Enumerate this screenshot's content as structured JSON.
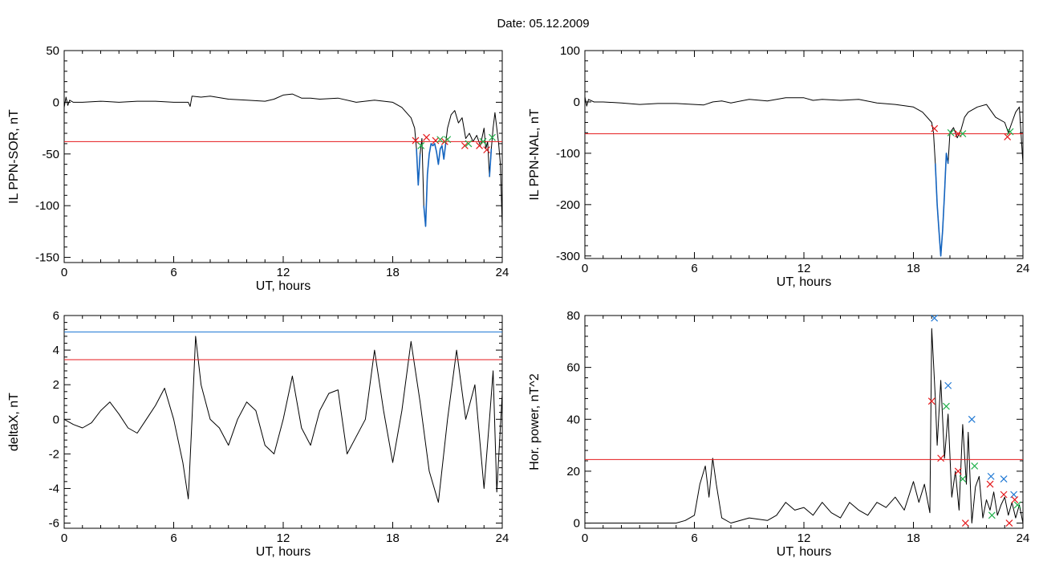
{
  "page_title": "Date:  05.12.2009",
  "colors": {
    "signal": "#000000",
    "threshold": "#e41a1c",
    "upper_threshold": "#1f78d4",
    "highlight": "#1565c0",
    "marker_start": "#e41a1c",
    "marker_end": "#22b14c",
    "marker_peak": "#1f78d4"
  },
  "chart_data": [
    {
      "id": "il-sor",
      "type": "line",
      "title": "",
      "xlabel": "UT, hours",
      "ylabel": "IL PPN-SOR, nT",
      "xlim": [
        0,
        24
      ],
      "ylim": [
        -155,
        50
      ],
      "xticks": [
        0,
        6,
        12,
        18,
        24
      ],
      "yticks": [
        50,
        0,
        -50,
        -100,
        -150
      ],
      "grid": false,
      "threshold": -38,
      "series": [
        {
          "x": [
            0,
            0.1,
            0.2,
            0.3,
            0.5,
            1,
            2,
            3,
            4,
            5,
            6,
            6.8,
            6.9,
            7,
            7.5,
            8,
            9,
            10,
            11,
            11.5,
            12,
            12.5,
            13,
            13.5,
            14,
            15,
            16,
            17,
            18,
            18.5,
            19,
            19.2,
            19.3,
            19.4,
            19.5,
            19.6,
            19.7,
            19.8,
            19.9,
            20,
            20.1,
            20.2,
            20.3,
            20.4,
            20.5,
            20.6,
            20.7,
            20.8,
            20.9,
            21,
            21.2,
            21.4,
            21.6,
            21.8,
            22,
            22.2,
            22.4,
            22.6,
            22.8,
            23,
            23.1,
            23.2,
            23.3,
            23.4,
            23.5,
            23.6,
            23.8,
            23.9,
            24
          ],
          "y": [
            -5,
            5,
            -3,
            2,
            0,
            0,
            1,
            0,
            1,
            1,
            0,
            0,
            -4,
            6,
            5,
            6,
            3,
            2,
            1,
            3,
            7,
            8,
            4,
            4,
            3,
            4,
            0,
            2,
            0,
            -5,
            -15,
            -25,
            -45,
            -80,
            -50,
            -35,
            -100,
            -120,
            -70,
            -50,
            -40,
            -42,
            -40,
            -48,
            -60,
            -45,
            -42,
            -55,
            -40,
            -25,
            -12,
            -8,
            -20,
            -15,
            -35,
            -30,
            -38,
            -32,
            -42,
            -25,
            -45,
            -38,
            -72,
            -45,
            -25,
            -10,
            -40,
            -60,
            -120
          ]
        }
      ],
      "highlight_segments": [
        [
          19.1,
          21.0
        ],
        [
          22.7,
          23.6
        ]
      ],
      "markers": [
        {
          "x": 19.25,
          "y": -37,
          "kind": "start"
        },
        {
          "x": 19.55,
          "y": -42,
          "kind": "end"
        },
        {
          "x": 19.85,
          "y": -34,
          "kind": "start"
        },
        {
          "x": 20.35,
          "y": -37,
          "kind": "start"
        },
        {
          "x": 20.6,
          "y": -36,
          "kind": "end"
        },
        {
          "x": 20.85,
          "y": -38,
          "kind": "start"
        },
        {
          "x": 21.0,
          "y": -36,
          "kind": "end"
        },
        {
          "x": 21.95,
          "y": -42,
          "kind": "start"
        },
        {
          "x": 22.15,
          "y": -40,
          "kind": "end"
        },
        {
          "x": 22.75,
          "y": -42,
          "kind": "start"
        },
        {
          "x": 22.95,
          "y": -38,
          "kind": "end"
        },
        {
          "x": 23.15,
          "y": -46,
          "kind": "start"
        },
        {
          "x": 23.45,
          "y": -34,
          "kind": "end"
        }
      ]
    },
    {
      "id": "il-nal",
      "type": "line",
      "title": "",
      "xlabel": "UT, hours",
      "ylabel": "IL PPN-NAL, nT",
      "xlim": [
        0,
        24
      ],
      "ylim": [
        -305,
        100
      ],
      "xticks": [
        0,
        6,
        12,
        18,
        24
      ],
      "yticks": [
        100,
        0,
        -100,
        -200,
        -300
      ],
      "grid": false,
      "threshold": -62,
      "series": [
        {
          "x": [
            0,
            0.1,
            0.2,
            0.5,
            1,
            2,
            3,
            4,
            5,
            6,
            6.5,
            7,
            7.5,
            8,
            9,
            10,
            11,
            12,
            12.5,
            13,
            14,
            15,
            16,
            17,
            18,
            18.5,
            19,
            19.1,
            19.2,
            19.3,
            19.4,
            19.5,
            19.6,
            19.7,
            19.8,
            19.9,
            20,
            20.2,
            20.4,
            20.6,
            20.8,
            21,
            21.5,
            22,
            22.5,
            23,
            23.2,
            23.4,
            23.6,
            23.8,
            24
          ],
          "y": [
            10,
            -8,
            5,
            0,
            0,
            -2,
            -5,
            -3,
            -3,
            -5,
            -6,
            0,
            2,
            -2,
            5,
            2,
            8,
            8,
            3,
            5,
            3,
            5,
            -2,
            -5,
            -10,
            -20,
            -40,
            -60,
            -120,
            -200,
            -250,
            -300,
            -250,
            -180,
            -100,
            -120,
            -60,
            -50,
            -70,
            -55,
            -30,
            -20,
            -10,
            -5,
            -30,
            -40,
            -60,
            -40,
            -20,
            -10,
            -120
          ]
        }
      ],
      "highlight_segments": [
        [
          19.2,
          20.4
        ]
      ],
      "markers": [
        {
          "x": 19.15,
          "y": -52,
          "kind": "start"
        },
        {
          "x": 20.05,
          "y": -60,
          "kind": "end"
        },
        {
          "x": 20.45,
          "y": -62,
          "kind": "start"
        },
        {
          "x": 20.7,
          "y": -62,
          "kind": "end"
        },
        {
          "x": 23.15,
          "y": -68,
          "kind": "start"
        },
        {
          "x": 23.3,
          "y": -58,
          "kind": "end"
        }
      ]
    },
    {
      "id": "deltax",
      "type": "line",
      "title": "",
      "xlabel": "UT, hours",
      "ylabel": "deltaX, nT",
      "xlim": [
        0,
        24
      ],
      "ylim": [
        -6.3,
        6
      ],
      "xticks": [
        0,
        6,
        12,
        18,
        24
      ],
      "yticks": [
        6,
        4,
        2,
        0,
        -2,
        -4,
        -6
      ],
      "grid": false,
      "thresholds": [
        {
          "y": 5.05,
          "color_key": "upper_threshold"
        },
        {
          "y": 3.45,
          "color_key": "threshold"
        }
      ],
      "series": [
        {
          "x": [
            0,
            0.5,
            1,
            1.5,
            2,
            2.5,
            3,
            3.5,
            4,
            4.5,
            5,
            5.5,
            6,
            6.5,
            6.8,
            7,
            7.2,
            7.5,
            8,
            8.5,
            9,
            9.5,
            10,
            10.5,
            11,
            11.5,
            12,
            12.5,
            13,
            13.5,
            14,
            14.5,
            15,
            15.5,
            16,
            16.5,
            17,
            17.5,
            18,
            18.5,
            19,
            19.5,
            20,
            20.5,
            21,
            21.5,
            22,
            22.5,
            23,
            23.3,
            23.5,
            23.7,
            24
          ],
          "y": [
            0,
            -0.3,
            -0.5,
            -0.2,
            0.5,
            1,
            0.3,
            -0.5,
            -0.8,
            0,
            0.8,
            1.8,
            0,
            -2.5,
            -4.6,
            0,
            4.8,
            2,
            0,
            -0.5,
            -1.5,
            0,
            1,
            0.5,
            -1.5,
            -2,
            0,
            2.5,
            -0.5,
            -1.5,
            0.5,
            1.5,
            1.7,
            -2,
            -1,
            0,
            4,
            0.5,
            -2.5,
            0.5,
            4.5,
            1,
            -3,
            -4.8,
            0,
            4,
            0,
            2,
            -4,
            0,
            2.8,
            -4.2,
            1.5
          ]
        }
      ]
    },
    {
      "id": "hor-power",
      "type": "line",
      "title": "",
      "xlabel": "UT, hours",
      "ylabel": "Hor. power, nT^2",
      "xlim": [
        0,
        24
      ],
      "ylim": [
        -2,
        80
      ],
      "xticks": [
        0,
        6,
        12,
        18,
        24
      ],
      "yticks": [
        80,
        60,
        40,
        20,
        0
      ],
      "grid": false,
      "threshold": 24.5,
      "series": [
        {
          "x": [
            0,
            1,
            2,
            3,
            4,
            5,
            5.5,
            6,
            6.3,
            6.6,
            6.8,
            7,
            7.2,
            7.5,
            8,
            9,
            10,
            10.5,
            11,
            11.5,
            12,
            12.5,
            13,
            13.5,
            14,
            14.5,
            15,
            15.5,
            16,
            16.5,
            17,
            17.5,
            18,
            18.3,
            18.6,
            18.9,
            19,
            19.1,
            19.2,
            19.3,
            19.5,
            19.7,
            19.9,
            20.1,
            20.3,
            20.5,
            20.7,
            20.9,
            21,
            21.2,
            21.4,
            21.6,
            21.8,
            22,
            22.2,
            22.4,
            22.6,
            22.8,
            23,
            23.2,
            23.4,
            23.6,
            23.8,
            24
          ],
          "y": [
            0,
            0,
            0,
            0,
            0,
            0,
            1,
            3,
            15,
            22,
            10,
            25,
            15,
            2,
            0,
            2,
            1,
            3,
            8,
            5,
            6,
            3,
            8,
            4,
            2,
            8,
            5,
            3,
            8,
            6,
            10,
            5,
            16,
            8,
            15,
            4,
            75,
            62,
            48,
            30,
            55,
            25,
            42,
            10,
            20,
            5,
            38,
            15,
            35,
            0,
            14,
            18,
            2,
            9,
            5,
            12,
            3,
            7,
            10,
            3,
            8,
            2,
            7,
            0
          ]
        }
      ],
      "markers": [
        {
          "x": 19.15,
          "y": 79,
          "kind": "peak"
        },
        {
          "x": 19.9,
          "y": 53,
          "kind": "peak"
        },
        {
          "x": 21.2,
          "y": 40,
          "kind": "peak"
        },
        {
          "x": 22.25,
          "y": 18,
          "kind": "peak"
        },
        {
          "x": 22.95,
          "y": 17,
          "kind": "peak"
        },
        {
          "x": 23.5,
          "y": 11,
          "kind": "peak"
        },
        {
          "x": 19.0,
          "y": 47,
          "kind": "start"
        },
        {
          "x": 19.5,
          "y": 25,
          "kind": "start"
        },
        {
          "x": 20.45,
          "y": 20,
          "kind": "start"
        },
        {
          "x": 20.85,
          "y": 0,
          "kind": "start"
        },
        {
          "x": 22.2,
          "y": 15,
          "kind": "start"
        },
        {
          "x": 22.95,
          "y": 11,
          "kind": "start"
        },
        {
          "x": 23.25,
          "y": 0,
          "kind": "start"
        },
        {
          "x": 23.55,
          "y": 9,
          "kind": "start"
        },
        {
          "x": 19.8,
          "y": 45,
          "kind": "end"
        },
        {
          "x": 20.7,
          "y": 17,
          "kind": "end"
        },
        {
          "x": 21.35,
          "y": 22,
          "kind": "end"
        },
        {
          "x": 22.3,
          "y": 3,
          "kind": "end"
        },
        {
          "x": 23.7,
          "y": 7,
          "kind": "end"
        }
      ]
    }
  ]
}
